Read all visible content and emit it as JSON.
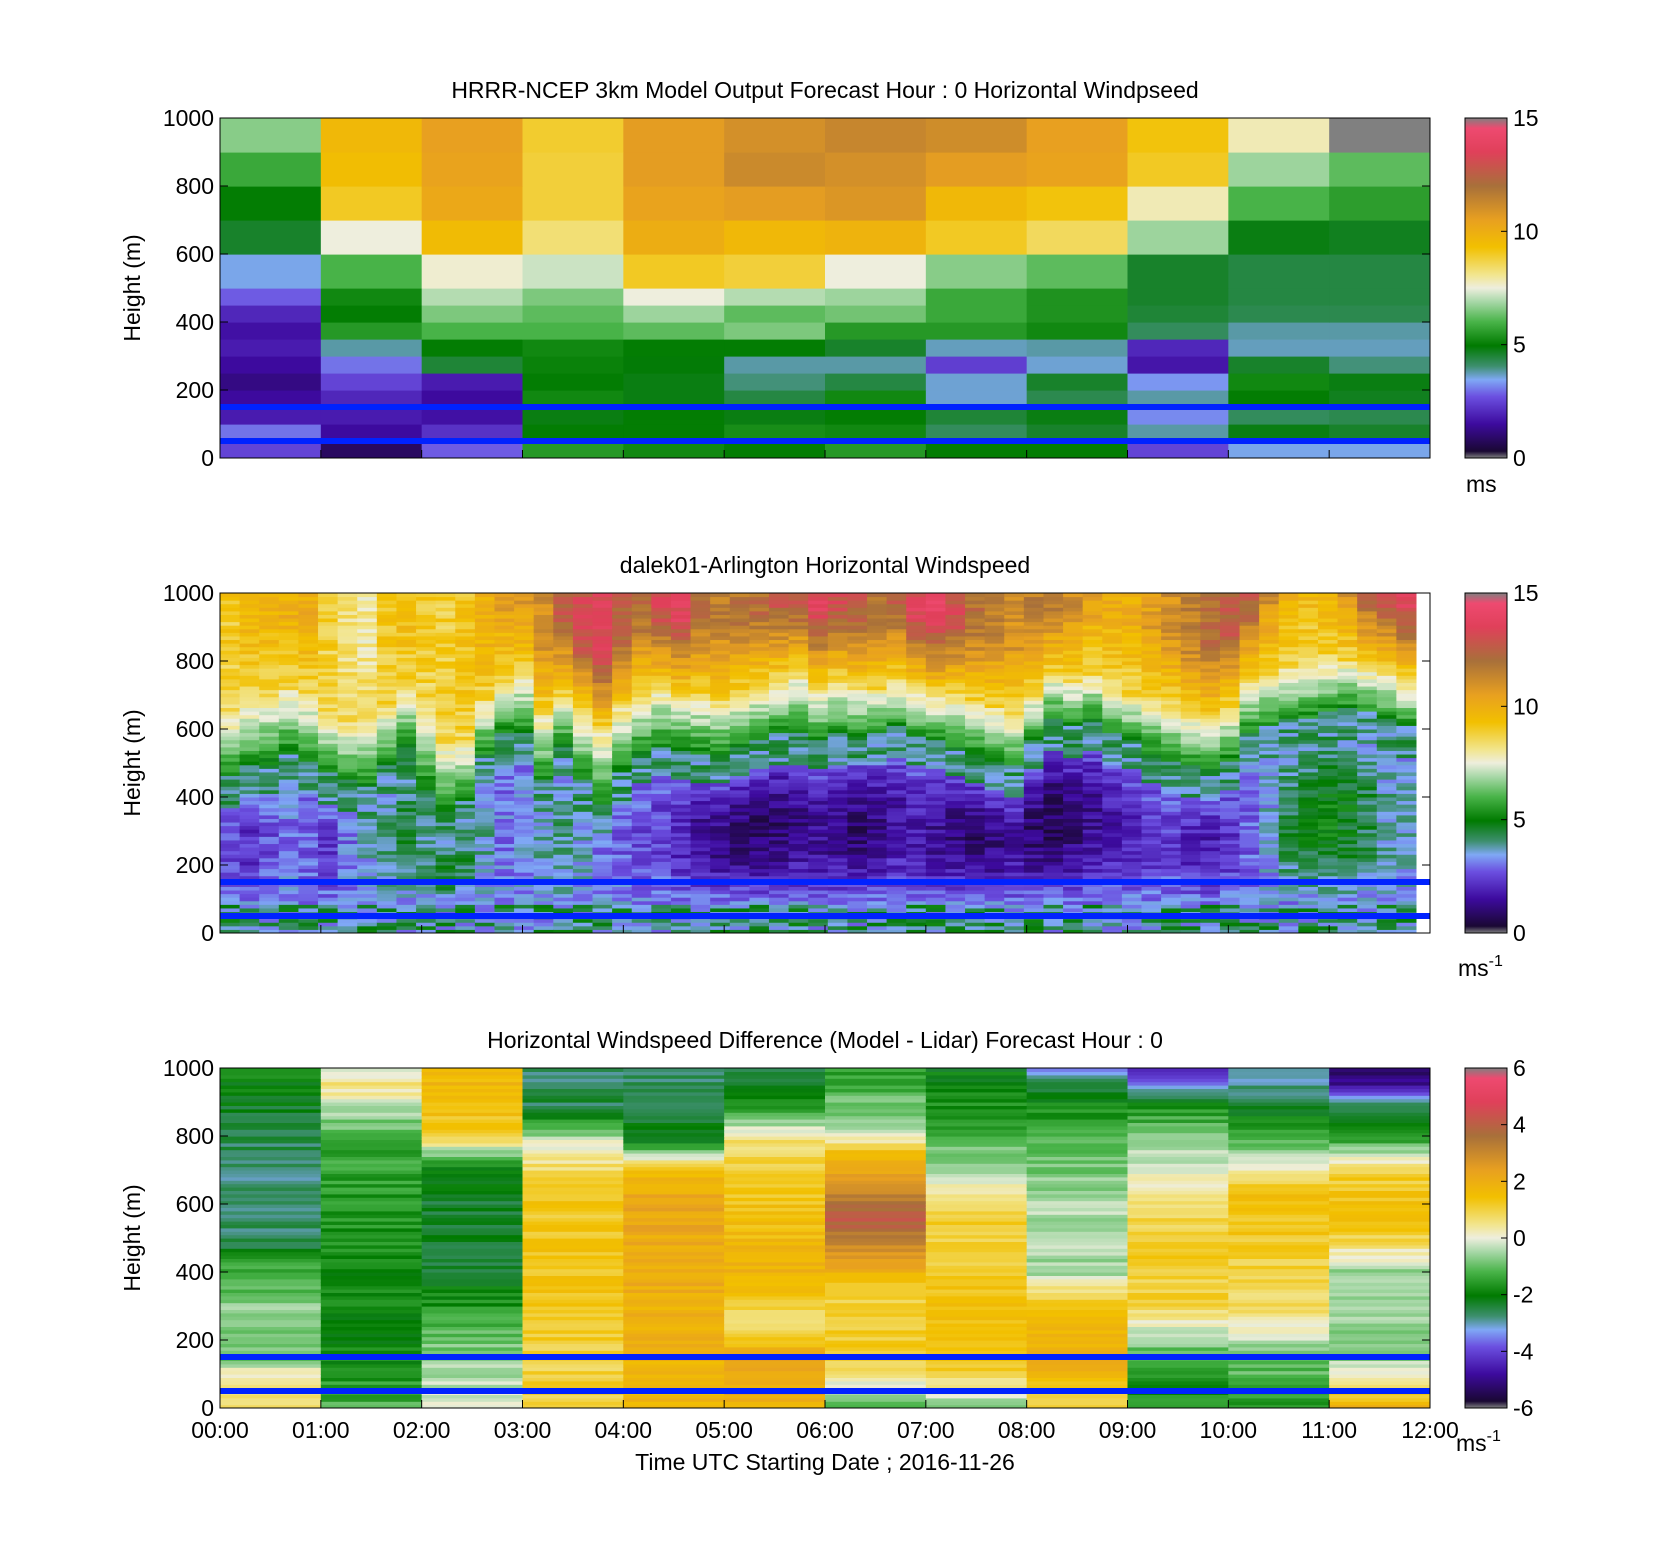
{
  "figure": {
    "xlabel": "Time UTC  Starting Date ; 2016-11-26",
    "x_tick_labels": [
      "00:00",
      "01:00",
      "02:00",
      "03:00",
      "04:00",
      "05:00",
      "06:00",
      "07:00",
      "08:00",
      "09:00",
      "10:00",
      "11:00",
      "12:00"
    ]
  },
  "chart_data": [
    {
      "type": "heatmap",
      "title": "HRRR-NCEP 3km Model Output   Forecast Hour : 0 Horizontal Windpseed",
      "ylabel": "Height (m)",
      "ylim": [
        0,
        1000
      ],
      "y_ticks": [
        0,
        200,
        400,
        600,
        800,
        1000
      ],
      "x_range": [
        "00:00",
        "12:00"
      ],
      "colorbar": {
        "min": 0,
        "max": 15,
        "ticks": [
          0,
          5,
          10,
          15
        ],
        "unit": "ms"
      },
      "heights": [
        25,
        75,
        125,
        175,
        225,
        275,
        325,
        375,
        425,
        475,
        550,
        650,
        750,
        850,
        950
      ],
      "height_edges": [
        0,
        50,
        100,
        150,
        200,
        250,
        300,
        350,
        400,
        450,
        500,
        600,
        700,
        800,
        900,
        1000
      ],
      "times": [
        "00:00",
        "01:00",
        "02:00",
        "03:00",
        "04:00",
        "05:00",
        "06:00",
        "07:00",
        "08:00",
        "09:00",
        "10:00",
        "11:00"
      ],
      "values": [
        [
          2.5,
          0.8,
          2.8,
          5.5,
          5.2,
          5.0,
          5.5,
          5.0,
          5.0,
          2.5,
          3.5,
          3.5
        ],
        [
          3.0,
          1.5,
          2.2,
          5.0,
          5.0,
          5.3,
          5.2,
          4.2,
          4.6,
          3.8,
          4.8,
          4.6
        ],
        [
          1.8,
          1.8,
          1.6,
          4.8,
          5.0,
          4.8,
          5.0,
          4.5,
          4.8,
          3.2,
          4.2,
          4.3
        ],
        [
          1.5,
          2.0,
          1.5,
          5.2,
          4.8,
          4.4,
          5.2,
          3.6,
          4.3,
          3.8,
          5.0,
          4.7
        ],
        [
          1.2,
          2.5,
          1.8,
          5.0,
          4.8,
          4.0,
          4.4,
          3.6,
          4.6,
          3.3,
          5.2,
          4.8
        ],
        [
          1.5,
          3.0,
          4.5,
          5.1,
          4.9,
          3.8,
          3.8,
          2.4,
          3.6,
          1.7,
          4.6,
          4.0
        ],
        [
          1.8,
          3.8,
          5.0,
          5.2,
          5.0,
          5.0,
          4.6,
          3.7,
          3.8,
          2.0,
          3.7,
          3.7
        ],
        [
          1.6,
          5.5,
          6.0,
          6.0,
          6.2,
          6.5,
          5.5,
          5.5,
          5.2,
          4.2,
          3.8,
          3.8
        ],
        [
          2.0,
          5.0,
          6.5,
          6.2,
          6.8,
          6.2,
          6.4,
          5.8,
          5.4,
          4.5,
          4.3,
          4.3
        ],
        [
          2.8,
          5.2,
          7.0,
          6.5,
          7.5,
          7.0,
          6.8,
          5.8,
          5.4,
          4.6,
          4.4,
          4.4
        ],
        [
          3.5,
          6.0,
          7.6,
          7.2,
          9.0,
          8.8,
          7.5,
          6.6,
          6.2,
          4.6,
          4.4,
          4.4
        ],
        [
          4.6,
          7.5,
          9.5,
          8.3,
          10.0,
          9.6,
          9.8,
          9.0,
          8.5,
          6.8,
          4.8,
          4.7
        ],
        [
          5.0,
          9.0,
          10.2,
          8.8,
          10.4,
          10.6,
          10.8,
          9.6,
          9.2,
          7.8,
          6.0,
          5.6
        ],
        [
          5.8,
          9.4,
          10.4,
          8.8,
          10.6,
          11.2,
          11.0,
          10.6,
          10.4,
          9.0,
          6.8,
          6.2
        ],
        [
          6.6,
          9.6,
          10.5,
          8.9,
          10.6,
          11.0,
          11.3,
          11.1,
          10.5,
          9.2,
          7.8,
          15.0
        ]
      ],
      "reference_lines_m": [
        150,
        50
      ]
    },
    {
      "type": "heatmap",
      "title": "dalek01-Arlington  Horizontal Windspeed",
      "ylabel": "Height (m)",
      "ylim": [
        0,
        1000
      ],
      "y_ticks": [
        0,
        200,
        400,
        600,
        800,
        1000
      ],
      "x_range": [
        "00:00",
        "12:00"
      ],
      "colorbar": {
        "min": 0,
        "max": 15,
        "ticks": [
          0,
          5,
          10,
          15
        ],
        "unit": "ms-1"
      },
      "time_profile": {
        "low_jet_top_m": [
          430,
          460,
          470,
          500,
          480,
          440,
          420,
          400,
          470,
          520,
          390,
          330,
          360,
          500,
          560,
          560,
          420,
          520,
          420,
          350,
          440,
          500,
          520,
          510,
          500,
          500,
          520,
          540,
          560,
          560,
          540,
          560,
          550,
          560,
          580,
          550,
          540,
          520,
          500,
          480,
          460,
          540,
          600,
          580,
          600,
          560,
          540,
          500,
          480,
          460,
          450,
          480,
          560,
          580,
          600,
          600,
          620,
          630,
          620,
          600,
          580
        ],
        "shear_layer_top_m": [
          640,
          680,
          700,
          720,
          700,
          640,
          620,
          620,
          660,
          720,
          660,
          560,
          560,
          680,
          740,
          760,
          640,
          700,
          640,
          600,
          660,
          700,
          720,
          700,
          700,
          680,
          700,
          720,
          740,
          760,
          720,
          740,
          720,
          720,
          740,
          720,
          700,
          700,
          680,
          660,
          640,
          700,
          760,
          740,
          760,
          720,
          700,
          680,
          660,
          640,
          620,
          660,
          740,
          760,
          780,
          780,
          800,
          800,
          780,
          760,
          740
        ],
        "upper_speed_ms": [
          9.0,
          9.5,
          9.8,
          10.0,
          10.0,
          8.8,
          8.2,
          8.0,
          9.0,
          9.5,
          9.0,
          8.8,
          9.2,
          10.0,
          10.5,
          10.8,
          11.0,
          12.5,
          13.0,
          13.5,
          12.5,
          12.0,
          13.0,
          13.5,
          12.0,
          11.5,
          11.8,
          12.0,
          12.5,
          13.0,
          13.5,
          13.0,
          12.5,
          12.0,
          12.5,
          13.5,
          13.8,
          13.0,
          12.0,
          11.5,
          11.0,
          11.5,
          12.0,
          11.0,
          10.5,
          10.0,
          10.0,
          10.5,
          11.0,
          11.5,
          12.0,
          12.5,
          12.5,
          11.0,
          10.0,
          9.5,
          10.0,
          11.0,
          12.5,
          13.0,
          13.5
        ],
        "jet_core_speed_ms": [
          2.5,
          2.2,
          2.6,
          3.0,
          2.8,
          2.4,
          3.0,
          3.5,
          4.2,
          4.6,
          4.2,
          4.6,
          4.4,
          3.8,
          3.0,
          3.2,
          3.8,
          4.0,
          3.6,
          3.0,
          2.8,
          2.6,
          2.4,
          2.0,
          1.4,
          1.2,
          1.0,
          0.9,
          1.0,
          1.2,
          1.4,
          1.2,
          1.0,
          1.2,
          1.6,
          1.8,
          1.4,
          1.2,
          1.0,
          1.2,
          1.6,
          1.0,
          0.8,
          1.0,
          1.4,
          1.8,
          2.0,
          2.2,
          2.4,
          2.0,
          1.8,
          2.2,
          2.8,
          3.5,
          4.4,
          4.8,
          5.0,
          4.8,
          4.4,
          3.8,
          3.6
        ]
      },
      "reference_lines_m": [
        150,
        50
      ]
    },
    {
      "type": "heatmap",
      "title": "Horizontal Windspeed Difference (Model - Lidar) Forecast Hour : 0",
      "ylabel": "Height (m)",
      "ylim": [
        0,
        1000
      ],
      "y_ticks": [
        0,
        200,
        400,
        600,
        800,
        1000
      ],
      "x_range": [
        "00:00",
        "12:00"
      ],
      "colorbar": {
        "min": -6,
        "max": 6,
        "ticks": [
          -6,
          -4,
          -2,
          0,
          2,
          4,
          6
        ],
        "unit": "ms-1"
      },
      "times": [
        "00:00",
        "01:00",
        "02:00",
        "03:00",
        "04:00",
        "05:00",
        "06:00",
        "07:00",
        "08:00",
        "09:00",
        "10:00",
        "11:00"
      ],
      "column_profiles": [
        [
          [
            0,
            0.6
          ],
          [
            100,
            0.3
          ],
          [
            150,
            -1.0
          ],
          [
            300,
            -0.7
          ],
          [
            420,
            -1.5
          ],
          [
            480,
            -2.6
          ],
          [
            650,
            -2.8
          ],
          [
            800,
            -2.6
          ],
          [
            1000,
            -1.8
          ]
        ],
        [
          [
            0,
            -1.2
          ],
          [
            150,
            -1.9
          ],
          [
            400,
            -1.8
          ],
          [
            600,
            -1.6
          ],
          [
            750,
            -1.4
          ],
          [
            850,
            -0.8
          ],
          [
            950,
            0.6
          ],
          [
            1000,
            0.0
          ]
        ],
        [
          [
            0,
            0.0
          ],
          [
            150,
            -0.6
          ],
          [
            400,
            -2.4
          ],
          [
            600,
            -2.3
          ],
          [
            720,
            -1.8
          ],
          [
            800,
            1.2
          ],
          [
            1000,
            1.8
          ]
        ],
        [
          [
            0,
            1.0
          ],
          [
            150,
            1.0
          ],
          [
            400,
            1.3
          ],
          [
            600,
            1.2
          ],
          [
            700,
            0.8
          ],
          [
            780,
            0.0
          ],
          [
            880,
            -2.5
          ],
          [
            1000,
            -2.7
          ]
        ],
        [
          [
            0,
            1.6
          ],
          [
            150,
            1.8
          ],
          [
            400,
            2.0
          ],
          [
            600,
            2.2
          ],
          [
            700,
            1.6
          ],
          [
            780,
            -2.0
          ],
          [
            1000,
            -2.8
          ]
        ],
        [
          [
            0,
            2.0
          ],
          [
            150,
            2.2
          ],
          [
            250,
            0.5
          ],
          [
            400,
            1.8
          ],
          [
            600,
            1.4
          ],
          [
            800,
            0.6
          ],
          [
            880,
            -1.8
          ],
          [
            1000,
            -2.6
          ]
        ],
        [
          [
            0,
            -1.2
          ],
          [
            150,
            1.2
          ],
          [
            350,
            1.0
          ],
          [
            450,
            2.6
          ],
          [
            550,
            4.0
          ],
          [
            650,
            3.0
          ],
          [
            750,
            1.5
          ],
          [
            820,
            -0.6
          ],
          [
            1000,
            -1.5
          ]
        ],
        [
          [
            0,
            -0.8
          ],
          [
            150,
            1.6
          ],
          [
            400,
            1.2
          ],
          [
            600,
            1.0
          ],
          [
            700,
            -0.4
          ],
          [
            850,
            -1.6
          ],
          [
            1000,
            -2.1
          ]
        ],
        [
          [
            0,
            0.9
          ],
          [
            150,
            2.0
          ],
          [
            300,
            1.6
          ],
          [
            400,
            -0.5
          ],
          [
            600,
            -0.4
          ],
          [
            700,
            -0.8
          ],
          [
            850,
            -1.5
          ],
          [
            950,
            -2.4
          ],
          [
            1000,
            -3.3
          ]
        ],
        [
          [
            0,
            -1.8
          ],
          [
            150,
            -1.4
          ],
          [
            300,
            1.0
          ],
          [
            500,
            1.1
          ],
          [
            600,
            0.8
          ],
          [
            750,
            -0.4
          ],
          [
            880,
            -1.6
          ],
          [
            1000,
            -4.5
          ]
        ],
        [
          [
            0,
            -1.6
          ],
          [
            150,
            -0.9
          ],
          [
            300,
            0.8
          ],
          [
            500,
            1.2
          ],
          [
            650,
            1.4
          ],
          [
            750,
            -0.6
          ],
          [
            900,
            -2.5
          ],
          [
            1000,
            -3.2
          ]
        ],
        [
          [
            0,
            2.0
          ],
          [
            150,
            -0.7
          ],
          [
            400,
            -0.6
          ],
          [
            550,
            1.6
          ],
          [
            700,
            1.0
          ],
          [
            800,
            -1.8
          ],
          [
            900,
            -2.6
          ],
          [
            950,
            -4.8
          ],
          [
            1000,
            -5.2
          ]
        ]
      ],
      "reference_lines_m": [
        150,
        50
      ]
    }
  ],
  "colors": {
    "reference_line": "#0022ff",
    "missing": "#ffffff",
    "colormap_stops": [
      [
        0.0,
        "#808080"
      ],
      [
        0.02,
        "#1a0833"
      ],
      [
        0.1,
        "#3d0a9e"
      ],
      [
        0.18,
        "#6b4fe0"
      ],
      [
        0.23,
        "#7fa8f5"
      ],
      [
        0.27,
        "#3d8f6e"
      ],
      [
        0.33,
        "#007a00"
      ],
      [
        0.4,
        "#48b348"
      ],
      [
        0.46,
        "#a8d8a8"
      ],
      [
        0.5,
        "#eeeedd"
      ],
      [
        0.54,
        "#f2e58c"
      ],
      [
        0.62,
        "#f2c000"
      ],
      [
        0.7,
        "#e8a020"
      ],
      [
        0.8,
        "#a8703a"
      ],
      [
        0.9,
        "#e0405a"
      ],
      [
        0.97,
        "#ee4a70"
      ],
      [
        1.0,
        "#808080"
      ]
    ]
  }
}
